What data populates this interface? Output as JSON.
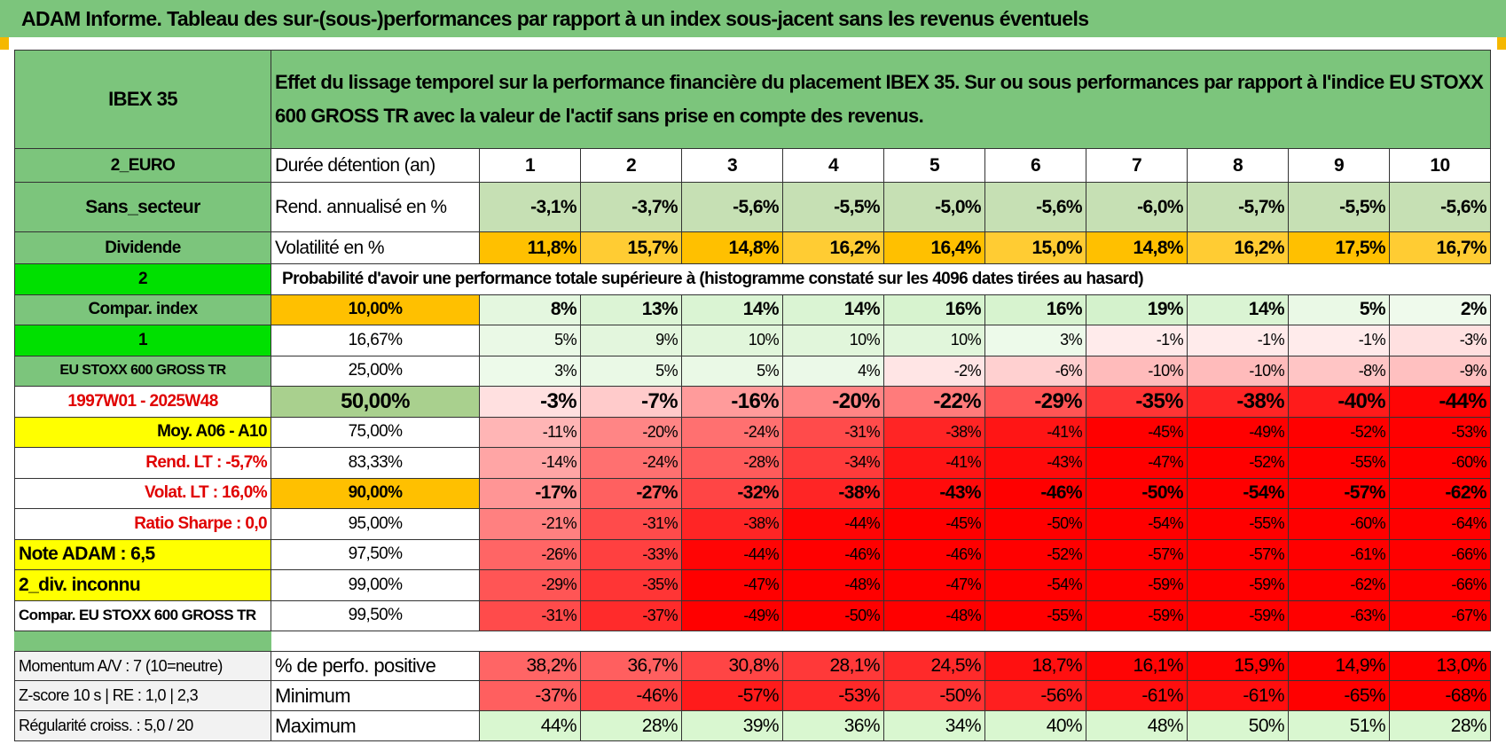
{
  "title": "ADAM Informe. Tableau des sur-(sous-)performances par rapport à un index sous-jacent sans les revenus éventuels",
  "header": {
    "left": "IBEX 35",
    "text": "Effet du lissage temporel sur la performance financière du placement IBEX 35. Sur ou sous performances par rapport à l'indice EU STOXX 600 GROSS TR avec la valeur de l'actif sans prise en compte des revenus."
  },
  "rows": [
    {
      "left": "2_EURO",
      "label": "Durée détention (an)",
      "cells": [
        "1",
        "2",
        "3",
        "4",
        "5",
        "6",
        "7",
        "8",
        "9",
        "10"
      ]
    },
    {
      "left": "Sans_secteur",
      "label": "Rend. annualisé en %",
      "cells": [
        "-3,1%",
        "-3,7%",
        "-5,6%",
        "-5,5%",
        "-5,0%",
        "-5,6%",
        "-6,0%",
        "-5,7%",
        "-5,5%",
        "-5,6%"
      ]
    },
    {
      "left": "Dividende",
      "label": "Volatilité en %",
      "cells": [
        "11,8%",
        "15,7%",
        "14,8%",
        "16,2%",
        "16,4%",
        "15,0%",
        "14,8%",
        "16,2%",
        "17,5%",
        "16,7%"
      ]
    },
    {
      "left": "2",
      "text": "Probabilité d'avoir une performance totale supérieure à (histogramme constaté sur les 4096 dates tirées au hasard)"
    },
    {
      "left": "Compar. index",
      "label": "10,00%",
      "cells": [
        "8%",
        "13%",
        "14%",
        "14%",
        "16%",
        "16%",
        "19%",
        "14%",
        "5%",
        "2%"
      ]
    },
    {
      "left": "1",
      "label": "16,67%",
      "cells": [
        "5%",
        "9%",
        "10%",
        "10%",
        "10%",
        "3%",
        "-1%",
        "-1%",
        "-1%",
        "-3%"
      ]
    },
    {
      "left": "EU STOXX 600 GROSS TR",
      "label": "25,00%",
      "cells": [
        "3%",
        "5%",
        "5%",
        "4%",
        "-2%",
        "-6%",
        "-10%",
        "-10%",
        "-8%",
        "-9%"
      ]
    },
    {
      "left": "1997W01 - 2025W48",
      "label": "50,00%",
      "cells": [
        "-3%",
        "-7%",
        "-16%",
        "-20%",
        "-22%",
        "-29%",
        "-35%",
        "-38%",
        "-40%",
        "-44%"
      ]
    },
    {
      "left": "Moy. A06 - A10",
      "label": "75,00%",
      "cells": [
        "-11%",
        "-20%",
        "-24%",
        "-31%",
        "-38%",
        "-41%",
        "-45%",
        "-49%",
        "-52%",
        "-53%"
      ]
    },
    {
      "left": "Rend. LT :    -5,7%",
      "label": "83,33%",
      "cells": [
        "-14%",
        "-24%",
        "-28%",
        "-34%",
        "-41%",
        "-43%",
        "-47%",
        "-52%",
        "-55%",
        "-60%"
      ]
    },
    {
      "left": "Volat. LT :    16,0%",
      "label": "90,00%",
      "cells": [
        "-17%",
        "-27%",
        "-32%",
        "-38%",
        "-43%",
        "-46%",
        "-50%",
        "-54%",
        "-57%",
        "-62%"
      ]
    },
    {
      "left": "Ratio Sharpe :     0,0",
      "label": "95,00%",
      "cells": [
        "-21%",
        "-31%",
        "-38%",
        "-44%",
        "-45%",
        "-50%",
        "-54%",
        "-55%",
        "-60%",
        "-64%"
      ]
    },
    {
      "left": "Note ADAM : 6,5",
      "label": "97,50%",
      "cells": [
        "-26%",
        "-33%",
        "-44%",
        "-46%",
        "-46%",
        "-52%",
        "-57%",
        "-57%",
        "-61%",
        "-66%"
      ]
    },
    {
      "left": "2_div. inconnu",
      "label": "99,00%",
      "cells": [
        "-29%",
        "-35%",
        "-47%",
        "-48%",
        "-47%",
        "-54%",
        "-59%",
        "-59%",
        "-62%",
        "-66%"
      ]
    },
    {
      "left": "Compar. EU STOXX 600 GROSS TR",
      "label": "99,50%",
      "cells": [
        "-31%",
        "-37%",
        "-49%",
        "-50%",
        "-48%",
        "-55%",
        "-59%",
        "-59%",
        "-63%",
        "-67%"
      ]
    }
  ],
  "bottom_rows": [
    {
      "left": "Momentum A/V : 7 (10=neutre)",
      "label": "% de perfo. positive",
      "cells": [
        "38,2%",
        "36,7%",
        "30,8%",
        "28,1%",
        "24,5%",
        "18,7%",
        "16,1%",
        "15,9%",
        "14,9%",
        "13,0%"
      ]
    },
    {
      "left": "Z-score 10 s | RE : 1,0 | 2,3",
      "label": "Minimum",
      "cells": [
        "-37%",
        "-46%",
        "-57%",
        "-53%",
        "-50%",
        "-56%",
        "-61%",
        "-61%",
        "-65%",
        "-68%"
      ]
    },
    {
      "left": "Régularité croiss. : 5,0 / 20",
      "label": "Maximum",
      "cells": [
        "44%",
        "28%",
        "39%",
        "36%",
        "34%",
        "40%",
        "48%",
        "50%",
        "51%",
        "28%"
      ]
    }
  ]
}
